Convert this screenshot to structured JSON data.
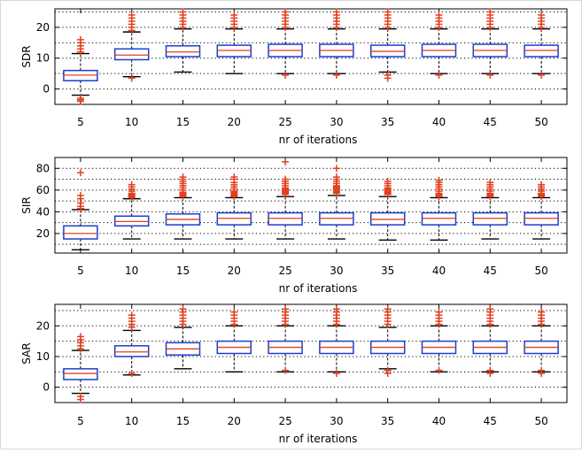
{
  "chart_data": [
    {
      "type": "box",
      "ylabel": "SDR",
      "xlabel": "nr of iterations",
      "categories": [
        "5",
        "10",
        "15",
        "20",
        "25",
        "30",
        "35",
        "40",
        "45",
        "50"
      ],
      "ylim": [
        -5,
        26
      ],
      "yticks": [
        0,
        10,
        20
      ],
      "hgrid": [
        -5,
        0,
        5,
        10,
        15,
        20,
        25
      ],
      "boxes": [
        {
          "whislo": -2,
          "q1": 2.7,
          "med": 4.5,
          "q3": 6,
          "whishi": 11.5,
          "fliers": [
            12,
            13,
            14,
            15,
            16,
            -3,
            -3.5,
            -4
          ]
        },
        {
          "whislo": 4,
          "q1": 9.5,
          "med": 11,
          "q3": 13,
          "whishi": 18.5,
          "fliers": [
            19,
            20,
            21,
            22,
            23,
            24,
            3.5
          ]
        },
        {
          "whislo": 5.5,
          "q1": 10.5,
          "med": 12,
          "q3": 14,
          "whishi": 19.5,
          "fliers": [
            20,
            21,
            22,
            23,
            24,
            25
          ]
        },
        {
          "whislo": 5,
          "q1": 10.5,
          "med": 12.5,
          "q3": 14.2,
          "whishi": 19.5,
          "fliers": [
            20,
            21,
            22,
            23,
            24
          ]
        },
        {
          "whislo": 5,
          "q1": 10.5,
          "med": 12.5,
          "q3": 14.5,
          "whishi": 19.5,
          "fliers": [
            20,
            21,
            22,
            23,
            24,
            25,
            4.5
          ]
        },
        {
          "whislo": 5,
          "q1": 10.5,
          "med": 12.5,
          "q3": 14.5,
          "whishi": 19.5,
          "fliers": [
            20,
            21,
            22,
            23,
            24,
            25,
            4.5
          ]
        },
        {
          "whislo": 5.5,
          "q1": 10.5,
          "med": 12.2,
          "q3": 14.2,
          "whishi": 19.5,
          "fliers": [
            20,
            21,
            22,
            23,
            24,
            25,
            4.5,
            3.5
          ]
        },
        {
          "whislo": 5,
          "q1": 10.5,
          "med": 12.5,
          "q3": 14.5,
          "whishi": 19.5,
          "fliers": [
            20,
            21,
            22,
            23,
            24,
            4.5
          ]
        },
        {
          "whislo": 5,
          "q1": 10.5,
          "med": 12.5,
          "q3": 14.5,
          "whishi": 19.5,
          "fliers": [
            20,
            21,
            22,
            23,
            24,
            25,
            4.5
          ]
        },
        {
          "whislo": 5,
          "q1": 10.5,
          "med": 12.5,
          "q3": 14.2,
          "whishi": 19.5,
          "fliers": [
            20,
            21,
            22,
            23,
            24,
            4.5
          ]
        }
      ]
    },
    {
      "type": "box",
      "ylabel": "SIR",
      "xlabel": "nr of iterations",
      "categories": [
        "5",
        "10",
        "15",
        "20",
        "25",
        "30",
        "35",
        "40",
        "45",
        "50"
      ],
      "ylim": [
        2,
        90
      ],
      "yticks": [
        20,
        40,
        60,
        80
      ],
      "hgrid": [
        10,
        20,
        30,
        40,
        50,
        60,
        70,
        80
      ],
      "boxes": [
        {
          "whislo": 5,
          "q1": 15,
          "med": 20,
          "q3": 27,
          "whishi": 42,
          "fliers": [
            43,
            45,
            48,
            52,
            55,
            76
          ]
        },
        {
          "whislo": 15,
          "q1": 27,
          "med": 31,
          "q3": 36,
          "whishi": 52,
          "fliers": [
            53,
            54,
            55,
            56,
            57,
            59,
            61,
            63,
            65
          ]
        },
        {
          "whislo": 15,
          "q1": 28,
          "med": 33,
          "q3": 38,
          "whishi": 53,
          "fliers": [
            54,
            55,
            56,
            57,
            58,
            60,
            62,
            64,
            66,
            68,
            70,
            72
          ]
        },
        {
          "whislo": 15,
          "q1": 28,
          "med": 34,
          "q3": 39,
          "whishi": 53,
          "fliers": [
            54,
            55,
            56,
            57,
            58,
            59,
            61,
            63,
            65,
            67,
            70,
            72
          ]
        },
        {
          "whislo": 15,
          "q1": 28,
          "med": 34,
          "q3": 39,
          "whishi": 54,
          "fliers": [
            56,
            57,
            58,
            59,
            60,
            61,
            62,
            64,
            66,
            68,
            70,
            86
          ]
        },
        {
          "whislo": 15,
          "q1": 28,
          "med": 34,
          "q3": 39,
          "whishi": 55,
          "fliers": [
            57,
            58,
            59,
            60,
            61,
            62,
            63,
            64,
            66,
            68,
            70,
            72,
            80
          ]
        },
        {
          "whislo": 14,
          "q1": 28,
          "med": 33,
          "q3": 39,
          "whishi": 54,
          "fliers": [
            56,
            57,
            58,
            59,
            60,
            61,
            62,
            64,
            66,
            68
          ]
        },
        {
          "whislo": 14,
          "q1": 28,
          "med": 34,
          "q3": 39,
          "whishi": 53,
          "fliers": [
            54,
            55,
            56,
            57,
            59,
            61,
            63,
            65,
            67,
            69
          ]
        },
        {
          "whislo": 15,
          "q1": 28,
          "med": 34,
          "q3": 39,
          "whishi": 53,
          "fliers": [
            54,
            55,
            56,
            57,
            59,
            61,
            63,
            65,
            67
          ]
        },
        {
          "whislo": 15,
          "q1": 28,
          "med": 34,
          "q3": 39,
          "whishi": 53,
          "fliers": [
            54,
            55,
            56,
            57,
            59,
            61,
            63,
            65
          ]
        }
      ]
    },
    {
      "type": "box",
      "ylabel": "SAR",
      "xlabel": "nr of iterations",
      "categories": [
        "5",
        "10",
        "15",
        "20",
        "25",
        "30",
        "35",
        "40",
        "45",
        "50"
      ],
      "ylim": [
        -5,
        27
      ],
      "yticks": [
        0,
        10,
        20
      ],
      "hgrid": [
        -5,
        0,
        5,
        10,
        15,
        20,
        25
      ],
      "boxes": [
        {
          "whislo": -2,
          "q1": 2.5,
          "med": 4.5,
          "q3": 6,
          "whishi": 12,
          "fliers": [
            12.5,
            13.5,
            14.5,
            15.5,
            16.5,
            -3,
            -4
          ]
        },
        {
          "whislo": 4,
          "q1": 10,
          "med": 11.5,
          "q3": 13.5,
          "whishi": 18.5,
          "fliers": [
            19.5,
            20.5,
            21.5,
            22.5,
            23.5,
            4.5
          ]
        },
        {
          "whislo": 6,
          "q1": 10.5,
          "med": 12.5,
          "q3": 14.5,
          "whishi": 19.5,
          "fliers": [
            20.5,
            21.5,
            22.5,
            23.5,
            24.5,
            25.5
          ]
        },
        {
          "whislo": 5,
          "q1": 11,
          "med": 13,
          "q3": 15,
          "whishi": 20,
          "fliers": [
            20.5,
            21.5,
            22.5,
            23.5,
            24.5
          ]
        },
        {
          "whislo": 5,
          "q1": 11,
          "med": 13,
          "q3": 15,
          "whishi": 20,
          "fliers": [
            20.5,
            21.5,
            22.5,
            23.5,
            24.5,
            25.5,
            5.5
          ]
        },
        {
          "whislo": 5,
          "q1": 11,
          "med": 13,
          "q3": 15,
          "whishi": 20,
          "fliers": [
            20.5,
            21.5,
            22.5,
            23.5,
            24.5,
            25.5,
            4.5
          ]
        },
        {
          "whislo": 6,
          "q1": 11,
          "med": 13,
          "q3": 15,
          "whishi": 19.5,
          "fliers": [
            20.5,
            21.5,
            22.5,
            23.5,
            24.5,
            25.5,
            5.5,
            4.5
          ]
        },
        {
          "whislo": 5,
          "q1": 11,
          "med": 13,
          "q3": 15,
          "whishi": 20,
          "fliers": [
            20.5,
            21.5,
            22.5,
            23.5,
            24.5,
            5.5
          ]
        },
        {
          "whislo": 5,
          "q1": 11,
          "med": 13,
          "q3": 15,
          "whishi": 20,
          "fliers": [
            20.5,
            21.5,
            22.5,
            23.5,
            24.5,
            25.5,
            5.5,
            4.5
          ]
        },
        {
          "whislo": 5,
          "q1": 11,
          "med": 13,
          "q3": 15,
          "whishi": 20,
          "fliers": [
            20.5,
            21.5,
            22.5,
            23.5,
            24.5,
            5.5,
            4.5
          ]
        }
      ]
    }
  ],
  "colors": {
    "box": "#1a3ecf",
    "median": "#e2401e",
    "flier": "#e2401e",
    "whisker": "#000000",
    "grid": "#000000"
  }
}
